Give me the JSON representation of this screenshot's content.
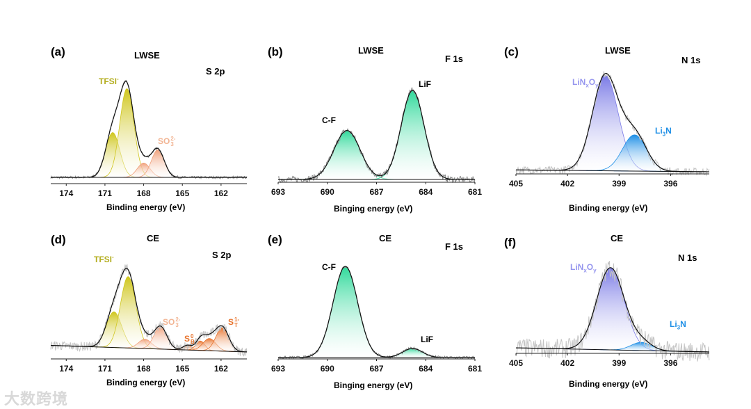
{
  "colors": {
    "tfsi": "#cfc61c",
    "tfsi_label": "#b3ad1e",
    "so3": "#f0a07a",
    "so3_label": "#f2b594",
    "st": "#e8742e",
    "cf": "#2fd99a",
    "linxoy": "#7b7be6",
    "linxoy_label": "#9696ee",
    "li3n": "#1e8fe6",
    "raw": "#8a8a8a",
    "raw_light": "#c4c4c4"
  },
  "watermark": "大数跨境",
  "chart_data": [
    {
      "id": "a",
      "type": "line",
      "panel_label": "(a)",
      "title": "LWSE",
      "region": "S 2p",
      "xlabel": "Binding energy (eV)",
      "xlim": [
        175.2,
        160.0
      ],
      "xticks": [
        174,
        171,
        168,
        165,
        162
      ],
      "peaks": [
        {
          "name": "TFSI-",
          "center": 170.4,
          "amp": 0.47,
          "sigma": 0.55,
          "color": "tfsi"
        },
        {
          "name": "TFSI-",
          "center": 169.3,
          "amp": 0.93,
          "sigma": 0.55,
          "color": "tfsi"
        },
        {
          "name": "SO3 2-",
          "center": 168.0,
          "amp": 0.15,
          "sigma": 0.5,
          "color": "so3"
        },
        {
          "name": "SO3 2-",
          "center": 166.9,
          "amp": 0.29,
          "sigma": 0.5,
          "color": "so3"
        }
      ],
      "labels": {
        "tfsi": "TFSI",
        "tfsi_sup": "-",
        "so3": "SO",
        "so3_sub": "3",
        "so3_sup": "2-"
      }
    },
    {
      "id": "b",
      "type": "line",
      "panel_label": "(b)",
      "title": "LWSE",
      "region": "F 1s",
      "xlabel": "Binging energy (eV)",
      "xlim": [
        693,
        681
      ],
      "xticks": [
        693,
        690,
        687,
        684,
        681
      ],
      "peaks": [
        {
          "name": "C-F",
          "center": 688.8,
          "amp": 0.55,
          "sigma": 0.8,
          "color": "cf"
        },
        {
          "name": "LiF",
          "center": 684.8,
          "amp": 1.0,
          "sigma": 0.7,
          "color": "cf"
        }
      ],
      "labels": {
        "cf": "C-F",
        "lif": "LiF"
      }
    },
    {
      "id": "c",
      "type": "line",
      "panel_label": "(c)",
      "title": "LWSE",
      "region": "N 1s",
      "xlabel": "Binding energy (eV)",
      "xlim": [
        405,
        393.75
      ],
      "xticks": [
        405,
        402,
        399,
        396
      ],
      "peaks": [
        {
          "name": "LiNxOy",
          "center": 399.8,
          "amp": 1.0,
          "sigma": 0.75,
          "color": "linxoy"
        },
        {
          "name": "Li3N",
          "center": 398.1,
          "amp": 0.38,
          "sigma": 0.7,
          "color": "li3n"
        }
      ],
      "labels": {
        "linxoy": "LiN",
        "x": "x",
        "o": "O",
        "y": "y",
        "li3n": "Li",
        "li3n_sub": "3",
        "li3n_n": "N"
      }
    },
    {
      "id": "d",
      "type": "line",
      "panel_label": "(d)",
      "title": "CE",
      "region": "S 2p",
      "xlabel": "Binding energy (eV)",
      "xlim": [
        175.2,
        160.0
      ],
      "xticks": [
        174,
        171,
        168,
        165,
        162
      ],
      "peaks": [
        {
          "name": "TFSI-",
          "center": 170.3,
          "amp": 0.38,
          "sigma": 0.6,
          "color": "tfsi"
        },
        {
          "name": "TFSI-",
          "center": 169.2,
          "amp": 0.76,
          "sigma": 0.6,
          "color": "tfsi"
        },
        {
          "name": "SO3 2-",
          "center": 167.9,
          "amp": 0.1,
          "sigma": 0.5,
          "color": "so3"
        },
        {
          "name": "SO3 2-",
          "center": 166.7,
          "amp": 0.24,
          "sigma": 0.5,
          "color": "so3"
        },
        {
          "name": "S0 B",
          "center": 164.6,
          "amp": 0.05,
          "sigma": 0.35,
          "color": "st"
        },
        {
          "name": "S1- T",
          "center": 163.6,
          "amp": 0.1,
          "sigma": 0.35,
          "color": "st"
        },
        {
          "name": "S1- T",
          "center": 162.9,
          "amp": 0.13,
          "sigma": 0.5,
          "color": "st"
        },
        {
          "name": "S1- T",
          "center": 161.9,
          "amp": 0.25,
          "sigma": 0.5,
          "color": "st"
        }
      ],
      "labels": {
        "tfsi": "TFSI",
        "tfsi_sup": "-",
        "so3": "SO",
        "so3_sub": "3",
        "so3_sup": "2-",
        "sb": "S",
        "sb_sub": "B",
        "sb_sup": "0",
        "st": "S",
        "st_sub": "T",
        "st_sup": "1-"
      }
    },
    {
      "id": "e",
      "type": "line",
      "panel_label": "(e)",
      "title": "CE",
      "region": "F 1s",
      "xlabel": "Binging energy (eV)",
      "xlim": [
        693,
        681
      ],
      "xticks": [
        693,
        690,
        687,
        684,
        681
      ],
      "peaks": [
        {
          "name": "C-F",
          "center": 688.9,
          "amp": 1.0,
          "sigma": 0.75,
          "color": "cf"
        },
        {
          "name": "LiF",
          "center": 684.8,
          "amp": 0.1,
          "sigma": 0.6,
          "color": "cf"
        }
      ],
      "labels": {
        "cf": "C-F",
        "lif": "LiF"
      }
    },
    {
      "id": "f",
      "type": "line",
      "panel_label": "(f)",
      "title": "CE",
      "region": "N 1s",
      "xlabel": "Binding energy (eV)",
      "xlim": [
        405,
        393.75
      ],
      "xticks": [
        405,
        402,
        399,
        396
      ],
      "peaks": [
        {
          "name": "LiNxOy",
          "center": 399.5,
          "amp": 1.0,
          "sigma": 0.8,
          "color": "linxoy"
        },
        {
          "name": "Li3N",
          "center": 397.7,
          "amp": 0.1,
          "sigma": 0.6,
          "color": "li3n"
        }
      ],
      "labels": {
        "linxoy": "LiN",
        "x": "x",
        "o": "O",
        "y": "y",
        "li3n": "Li",
        "li3n_sub": "3",
        "li3n_n": "N"
      }
    }
  ]
}
